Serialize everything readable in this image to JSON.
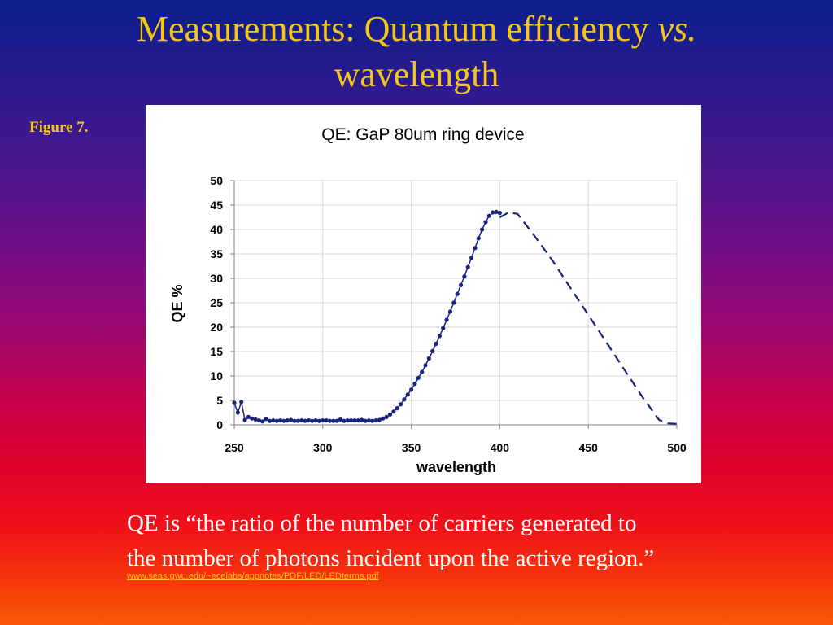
{
  "slide": {
    "title_main": "Measurements: Quantum efficiency ",
    "title_italic": "vs.",
    "title_line2": "wavelength",
    "figure_label": "Figure 7.",
    "definition_line1": "QE is “the ratio of the number of carriers generated to",
    "definition_line2": "the number of photons incident upon the active region.”",
    "source_url": "www.seas.gwu.edu/~ecelabs/appnotes/PDF/LED/LEDterms.pdf",
    "title_color": "#f5c518",
    "text_color": "#ffffff"
  },
  "chart_data": {
    "type": "line",
    "title": "QE: GaP 80um ring device",
    "xlabel": "wavelength",
    "ylabel": "QE %",
    "xlim": [
      250,
      500
    ],
    "ylim": [
      0,
      50
    ],
    "x_ticks": [
      "250",
      "300",
      "350",
      "400",
      "450",
      "500"
    ],
    "y_ticks": [
      "0",
      "5",
      "10",
      "15",
      "20",
      "25",
      "30",
      "35",
      "40",
      "45",
      "50"
    ],
    "grid": true,
    "legend": "none",
    "series_color": "#1a237e",
    "series": [
      {
        "style": "solid line with dot markers",
        "x": [
          250,
          252,
          254,
          256,
          258,
          260,
          262,
          264,
          266,
          268,
          270,
          272,
          274,
          276,
          278,
          280,
          282,
          284,
          286,
          288,
          290,
          292,
          294,
          296,
          298,
          300,
          302,
          304,
          306,
          308,
          310,
          312,
          314,
          316,
          318,
          320,
          322,
          324,
          326,
          328,
          330,
          332,
          334,
          336,
          338,
          340,
          342,
          344,
          346,
          348,
          350,
          352,
          354,
          356,
          358,
          360,
          362,
          364,
          366,
          368,
          370,
          372,
          374,
          376,
          378,
          380,
          382,
          384,
          386,
          388,
          390,
          392,
          394,
          396,
          398,
          400
        ],
        "y": [
          4.5,
          2.5,
          4.7,
          1.0,
          1.6,
          1.3,
          1.1,
          0.9,
          0.7,
          1.2,
          0.8,
          0.9,
          0.8,
          0.9,
          0.8,
          0.9,
          1.0,
          0.8,
          0.8,
          0.9,
          0.8,
          0.9,
          0.8,
          0.9,
          0.8,
          0.9,
          0.9,
          0.8,
          0.8,
          0.8,
          1.1,
          0.8,
          0.9,
          0.9,
          0.9,
          0.9,
          1.0,
          0.8,
          0.9,
          0.8,
          0.9,
          1.0,
          1.3,
          1.6,
          2.1,
          2.7,
          3.4,
          4.2,
          5.2,
          6.2,
          7.2,
          8.4,
          9.6,
          10.8,
          12.2,
          13.6,
          15.1,
          16.6,
          18.2,
          19.8,
          21.5,
          23.2,
          25.0,
          26.8,
          28.6,
          30.4,
          32.3,
          34.2,
          36.2,
          38.2,
          40.0,
          41.5,
          42.8,
          43.5,
          43.6,
          43.4
        ]
      },
      {
        "style": "dashed line",
        "x": [
          400,
          405,
          410,
          420,
          430,
          440,
          450,
          460,
          470,
          480,
          490,
          495,
          500
        ],
        "y": [
          42.5,
          43.5,
          43.2,
          38.5,
          33.5,
          28.0,
          22.5,
          17.0,
          11.5,
          6.0,
          1.0,
          0.3,
          0.2
        ]
      }
    ]
  }
}
